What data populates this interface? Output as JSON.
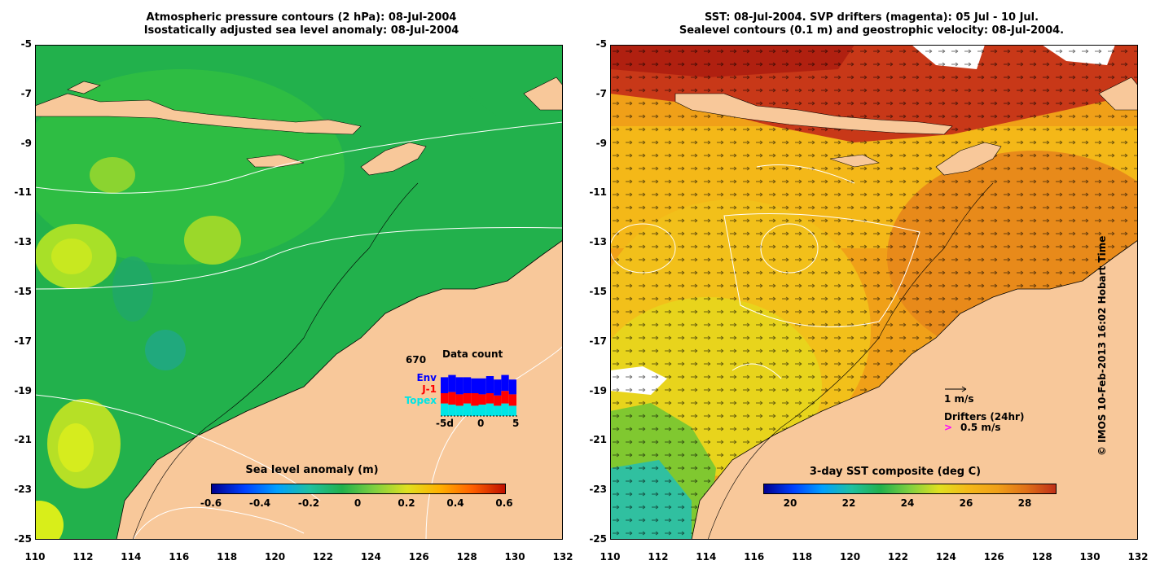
{
  "left_panel": {
    "title_line1": "Atmospheric pressure contours (2 hPa): 08-Jul-2004",
    "title_line2": "Isostatically adjusted sea level anomaly: 08-Jul-2004",
    "colorbar_title": "Sea level anomaly (m)",
    "colorbar_ticks": [
      "-0.6",
      "-0.4",
      "-0.2",
      "0",
      "0.2",
      "0.4",
      "0.6"
    ],
    "data_count": {
      "title": "Data count",
      "total": "670",
      "labels": [
        "Env",
        "J-1",
        "Topex"
      ],
      "label_colors": [
        "#0000ff",
        "#ff0000",
        "#00e5e5"
      ],
      "x_ticks": [
        "-5d",
        "0",
        "5"
      ]
    }
  },
  "right_panel": {
    "title_line1": "SST: 08-Jul-2004. SVP drifters (magenta): 05 Jul - 10 Jul.",
    "title_line2": "Sealevel contours (0.1 m) and geostrophic velocity: 08-Jul-2004.",
    "colorbar_title": "3-day SST composite (deg C)",
    "colorbar_ticks": [
      "20",
      "22",
      "24",
      "26",
      "28"
    ],
    "velocity_scale_label": "1 m/s",
    "drifters_label": "Drifters (24hr)",
    "drifter_speed_label": "0.5 m/s",
    "drifter_marker": ">"
  },
  "axes": {
    "latitudes": [
      "-5",
      "-7",
      "-9",
      "-11",
      "-13",
      "-15",
      "-17",
      "-19",
      "-21",
      "-23",
      "-25"
    ],
    "longitudes": [
      "110",
      "112",
      "114",
      "116",
      "118",
      "120",
      "122",
      "124",
      "126",
      "128",
      "130",
      "132"
    ]
  },
  "copyright": "© IMOS 10-Feb-2013 16:02 Hobart Time",
  "colors": {
    "land": "#f8c89a",
    "sea_mid": "#22b14c",
    "warm": "#e88a1a"
  }
}
